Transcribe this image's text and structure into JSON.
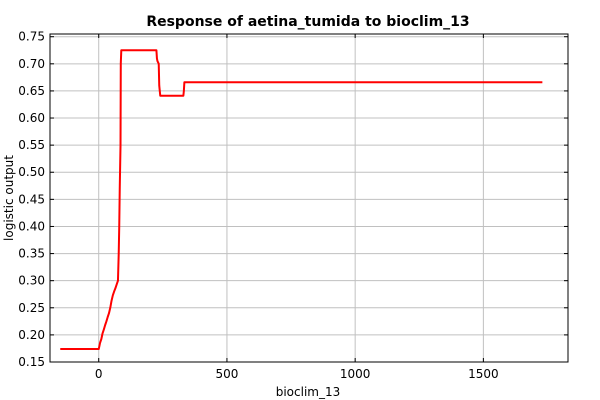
{
  "chart_data": {
    "type": "line",
    "title": "Response of aetina_tumida to bioclim_13",
    "xlabel": "bioclim_13",
    "ylabel": "logistic output",
    "xlim": [
      -190,
      1830
    ],
    "ylim": [
      0.15,
      0.755
    ],
    "x_ticks": [
      0,
      500,
      1000,
      1500
    ],
    "y_ticks": [
      0.15,
      0.2,
      0.25,
      0.3,
      0.35,
      0.4,
      0.45,
      0.5,
      0.55,
      0.6,
      0.65,
      0.7,
      0.75
    ],
    "grid": true,
    "colors": {
      "line": "#ff0000",
      "grid": "#c0c0c0",
      "axis": "#000000"
    },
    "series": [
      {
        "name": "",
        "x": [
          -150,
          0,
          2,
          5,
          10,
          15,
          20,
          25,
          30,
          35,
          40,
          45,
          50,
          55,
          60,
          65,
          70,
          75,
          78,
          80,
          82,
          85,
          86,
          88,
          90,
          225,
          227,
          229,
          232,
          234,
          236,
          240,
          330,
          332,
          334,
          1730
        ],
        "y": [
          0.174,
          0.174,
          0.178,
          0.185,
          0.192,
          0.203,
          0.21,
          0.218,
          0.225,
          0.233,
          0.24,
          0.25,
          0.263,
          0.273,
          0.28,
          0.286,
          0.293,
          0.3,
          0.35,
          0.4,
          0.47,
          0.55,
          0.7,
          0.725,
          0.725,
          0.725,
          0.71,
          0.705,
          0.702,
          0.7,
          0.66,
          0.641,
          0.641,
          0.65,
          0.666,
          0.666
        ]
      }
    ]
  }
}
